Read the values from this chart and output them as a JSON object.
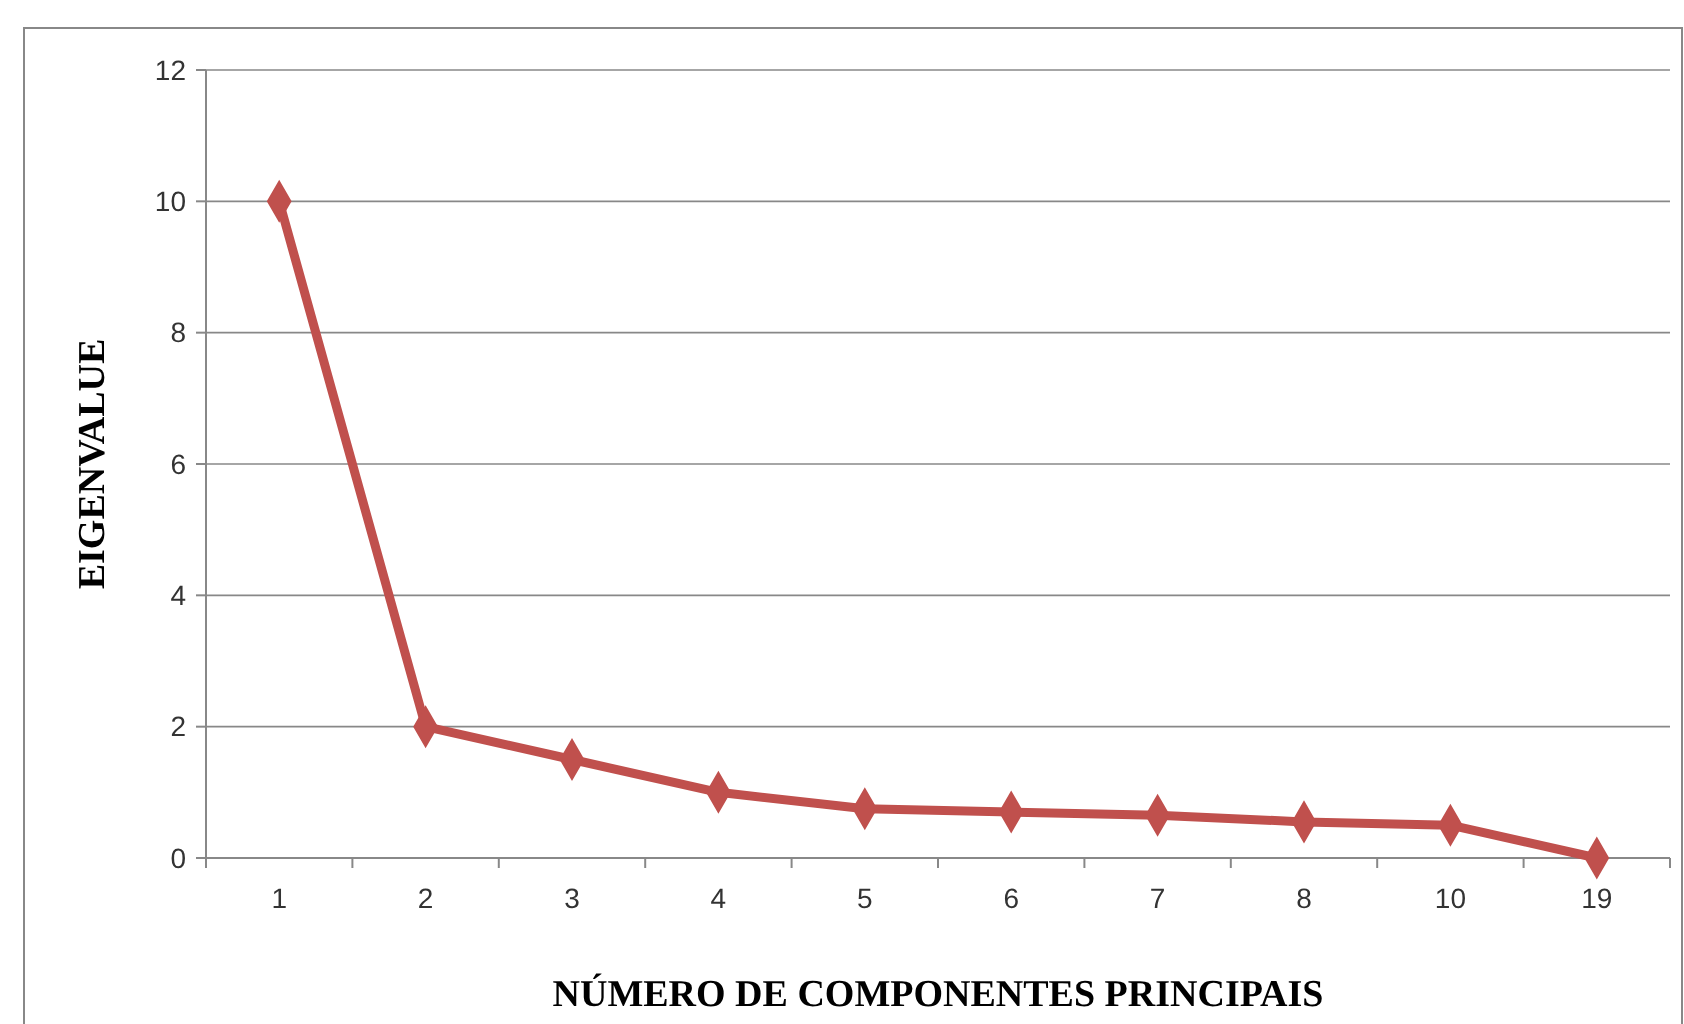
{
  "chart_data": {
    "type": "line",
    "xlabel": "NÚMERO DE COMPONENTES PRINCIPAIS",
    "ylabel": "EIGENVALUE",
    "categories": [
      "1",
      "2",
      "3",
      "4",
      "5",
      "6",
      "7",
      "8",
      "10",
      "19"
    ],
    "series": [
      {
        "color": "#c0504d",
        "values": [
          10,
          2,
          1.5,
          1,
          0.75,
          0.7,
          0.65,
          0.55,
          0.5,
          0
        ]
      }
    ],
    "ylim": [
      0,
      12
    ],
    "yticks": [
      0,
      2,
      4,
      6,
      8,
      10,
      12
    ],
    "grid": "y",
    "marker": "diamond",
    "line_style": "solid"
  }
}
